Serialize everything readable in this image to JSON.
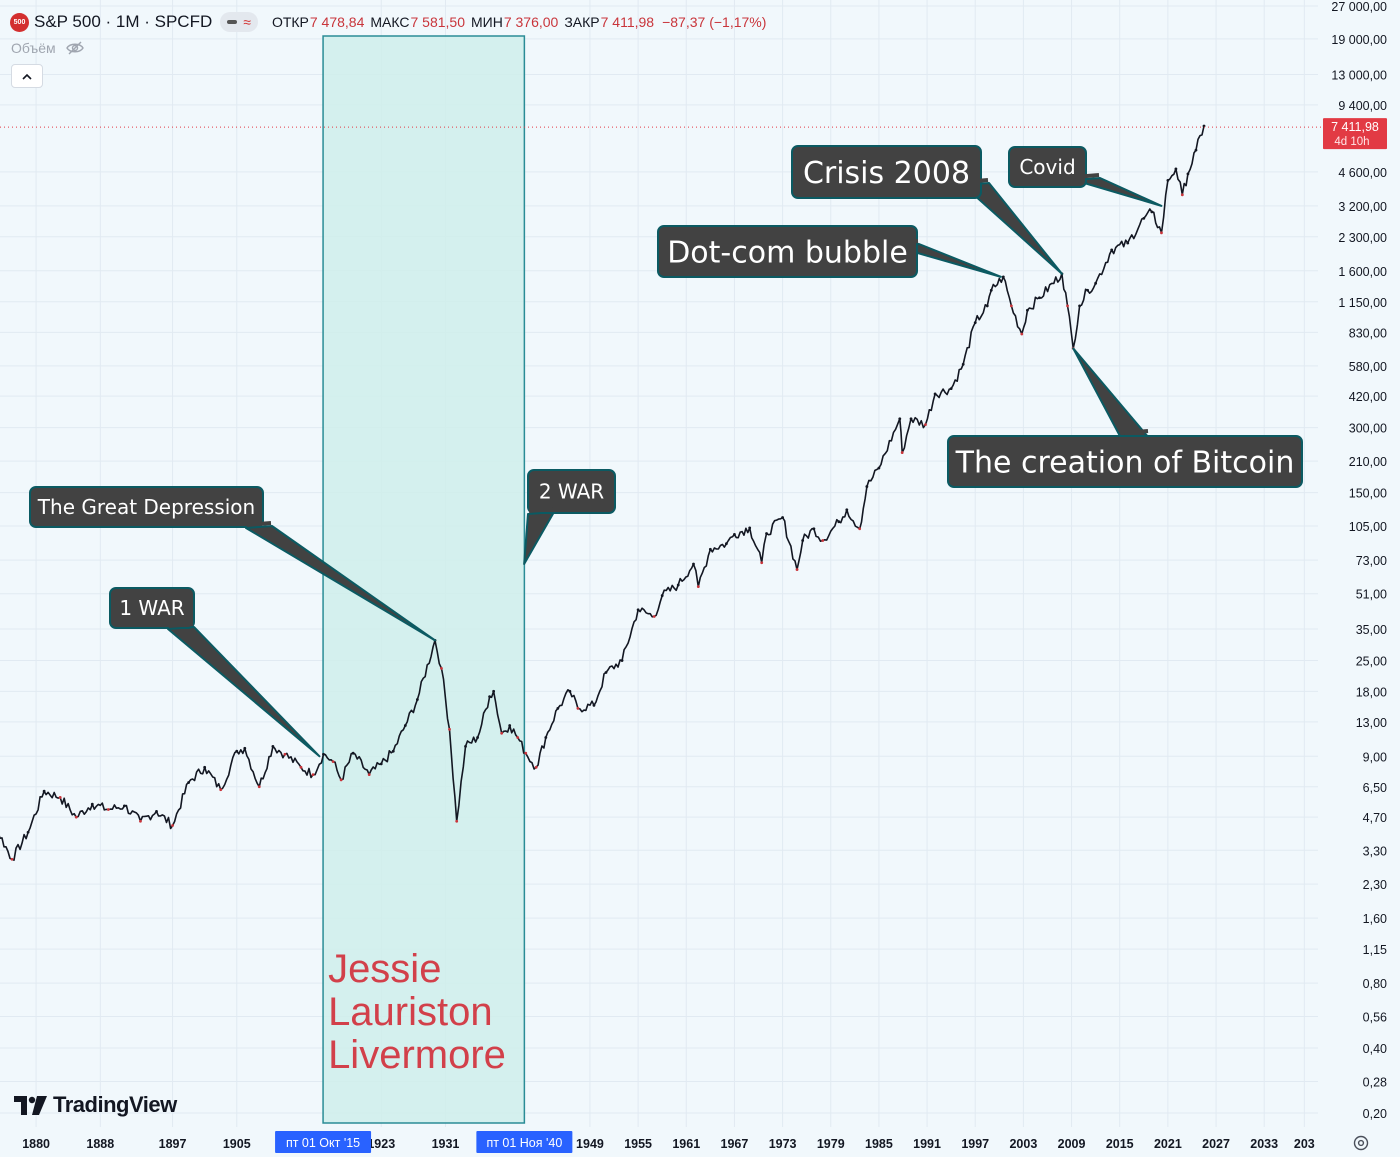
{
  "header": {
    "badge": "500",
    "symbol": "S&P 500 · 1M · SPCFD",
    "ohlc": [
      {
        "label": "ОТКР",
        "value": "7 478,84"
      },
      {
        "label": "МАКС",
        "value": "7 581,50"
      },
      {
        "label": "МИН",
        "value": "7 376,00"
      },
      {
        "label": "ЗАКР",
        "value": "7 411,98"
      }
    ],
    "change": "−87,37 (−1,17%)"
  },
  "volume_label": "Объём",
  "brand": "TradingView",
  "colors": {
    "background": "#f1f8fc",
    "highlight_fill": "#cfeeeb",
    "highlight_border": "#2a8c96",
    "callout_fill": "#424242",
    "callout_border": "#0b5a62",
    "price_line": "#131722",
    "down_candle": "#c9353b",
    "last_price_tag": "#e23a44",
    "name_text": "#d2404a",
    "time_marker": "#2962ff"
  },
  "icons": [
    "eye-off-icon",
    "chevron-up-icon",
    "settings-icon",
    "tradingview-logo"
  ],
  "chart_data": {
    "type": "line",
    "title": "S&P 500 · 1M · SPCFD",
    "y_scale": "log",
    "ylim": [
      0.2,
      27000
    ],
    "xlim": [
      1876,
      2034
    ],
    "grid": true,
    "y_ticks": [
      {
        "v": 27000,
        "label": "27 000,00"
      },
      {
        "v": 19000,
        "label": "19 000,00"
      },
      {
        "v": 13000,
        "label": "13 000,00"
      },
      {
        "v": 9400,
        "label": "9 400,00"
      },
      {
        "v": 4600,
        "label": "4 600,00"
      },
      {
        "v": 3200,
        "label": "3 200,00"
      },
      {
        "v": 2300,
        "label": "2 300,00"
      },
      {
        "v": 1600,
        "label": "1 600,00"
      },
      {
        "v": 1150,
        "label": "1 150,00"
      },
      {
        "v": 830,
        "label": "830,00"
      },
      {
        "v": 580,
        "label": "580,00"
      },
      {
        "v": 420,
        "label": "420,00"
      },
      {
        "v": 300,
        "label": "300,00"
      },
      {
        "v": 210,
        "label": "210,00"
      },
      {
        "v": 150,
        "label": "150,00"
      },
      {
        "v": 105,
        "label": "105,00"
      },
      {
        "v": 73,
        "label": "73,00"
      },
      {
        "v": 51,
        "label": "51,00"
      },
      {
        "v": 35,
        "label": "35,00"
      },
      {
        "v": 25,
        "label": "25,00"
      },
      {
        "v": 18,
        "label": "18,00"
      },
      {
        "v": 13,
        "label": "13,00"
      },
      {
        "v": 9,
        "label": "9,00"
      },
      {
        "v": 6.5,
        "label": "6,50"
      },
      {
        "v": 4.7,
        "label": "4,70"
      },
      {
        "v": 3.3,
        "label": "3,30"
      },
      {
        "v": 2.3,
        "label": "2,30"
      },
      {
        "v": 1.6,
        "label": "1,60"
      },
      {
        "v": 1.15,
        "label": "1,15"
      },
      {
        "v": 0.8,
        "label": "0,80"
      },
      {
        "v": 0.56,
        "label": "0,56"
      },
      {
        "v": 0.4,
        "label": "0,40"
      },
      {
        "v": 0.28,
        "label": "0,28"
      },
      {
        "v": 0.2,
        "label": "0,20"
      }
    ],
    "x_ticks": [
      "1880",
      "1888",
      "1897",
      "1905",
      "1923",
      "1931",
      "1949",
      "1955",
      "1961",
      "1967",
      "1973",
      "1979",
      "1985",
      "1991",
      "1997",
      "2003",
      "2009",
      "2015",
      "2021",
      "2027",
      "2033",
      "203"
    ],
    "time_markers": [
      {
        "label": "пт 01 Окт '15",
        "year": 1915.75
      },
      {
        "label": "пт 01 Ноя '40",
        "year": 1940.83
      }
    ],
    "last_price": {
      "value": 7411.98,
      "label": "7 411,98",
      "countdown": "4d 10h"
    },
    "highlight_range": {
      "from": 1915.75,
      "to": 1940.83,
      "text": [
        "Jessie",
        "Lauriston",
        "Livermore"
      ]
    },
    "series": [
      {
        "x": [
          1871.0,
          1873.0,
          1875.0,
          1877.0,
          1879.0,
          1881.0,
          1883.0,
          1885.0,
          1887.0,
          1889.0,
          1891.0,
          1893.0,
          1895.0,
          1897.0,
          1899.0,
          1901.0,
          1903.0,
          1905.0,
          1906.0,
          1907.8,
          1909.5,
          1911.0,
          1913.0,
          1914.5,
          1915.8,
          1917.0,
          1918.0,
          1919.5,
          1921.5,
          1923.0,
          1924.5,
          1926.0,
          1927.5,
          1929.7,
          1930.5,
          1931.5,
          1932.4,
          1933.5,
          1935.0,
          1936.5,
          1937.0,
          1938.0,
          1939.0,
          1940.0,
          1941.0,
          1942.3,
          1943.5,
          1945.0,
          1946.5,
          1947.5,
          1949.5,
          1951.0,
          1953.0,
          1955.0,
          1957.0,
          1958.0,
          1960.0,
          1961.9,
          1962.5,
          1964.0,
          1966.0,
          1967.0,
          1968.9,
          1970.4,
          1971.0,
          1973.0,
          1974.8,
          1975.5,
          1976.9,
          1978.0,
          1980.0,
          1981.0,
          1982.6,
          1983.5,
          1985.0,
          1987.6,
          1987.9,
          1989.0,
          1990.8,
          1992.0,
          1994.0,
          1995.5,
          1997.0,
          1998.5,
          1999.0,
          2000.5,
          2001.5,
          2002.8,
          2003.5,
          2005.0,
          2007.8,
          2008.5,
          2009.2,
          2010.0,
          2011.0,
          2012.0,
          2014.0,
          2016.0,
          2018.0,
          2019.0,
          2020.2,
          2021.0,
          2022.0,
          2022.8,
          2023.5,
          2024.5,
          2025.5
        ],
        "y": [
          4.6,
          3.6,
          4.2,
          3.0,
          4.0,
          6.2,
          5.8,
          4.7,
          5.4,
          5.1,
          5.3,
          4.5,
          5.0,
          4.3,
          6.8,
          8.0,
          6.3,
          9.5,
          9.8,
          6.5,
          10.0,
          9.2,
          8.0,
          7.4,
          9.2,
          8.5,
          7.0,
          9.3,
          7.4,
          8.3,
          9.5,
          12.5,
          16.5,
          31.0,
          23.0,
          12.0,
          4.5,
          10.0,
          11.0,
          17.0,
          18.0,
          11.5,
          12.5,
          11.0,
          9.3,
          8.0,
          11.0,
          15.0,
          18.0,
          15.0,
          15.5,
          22.0,
          25.0,
          43.0,
          40.0,
          50.0,
          56.0,
          70.0,
          55.0,
          82.0,
          87.0,
          96.0,
          103.0,
          71.0,
          97.0,
          115.0,
          66.0,
          90.0,
          102.0,
          90.0,
          110.0,
          125.0,
          102.0,
          160.0,
          195.0,
          330.0,
          230.0,
          330.0,
          310.0,
          430.0,
          455.0,
          590.0,
          920.0,
          1100.0,
          1300.0,
          1500.0,
          1100.0,
          815.0,
          1050.0,
          1200.0,
          1550.0,
          1100.0,
          700.0,
          1100.0,
          1300.0,
          1400.0,
          2000.0,
          2150.0,
          2800.0,
          3000.0,
          2400.0,
          4200.0,
          4750.0,
          3600.0,
          4500.0,
          5800.0,
          7500.0
        ]
      }
    ],
    "annotations": [
      {
        "label": "1 WAR",
        "year": 1915.3,
        "value": 9.0
      },
      {
        "label": "The Great Depression",
        "year": 1929.7,
        "value": 31.0
      },
      {
        "label": "2 WAR",
        "year": 1940.8,
        "value": 70.0
      },
      {
        "label": "Dot-com bubble",
        "year": 2000.2,
        "value": 1500.0
      },
      {
        "label": "Crisis 2008",
        "year": 2007.8,
        "value": 1550.0
      },
      {
        "label": "The creation of Bitcoin",
        "year": 2009.2,
        "value": 700.0
      },
      {
        "label": "Covid",
        "year": 2020.2,
        "value": 3200.0
      }
    ]
  }
}
